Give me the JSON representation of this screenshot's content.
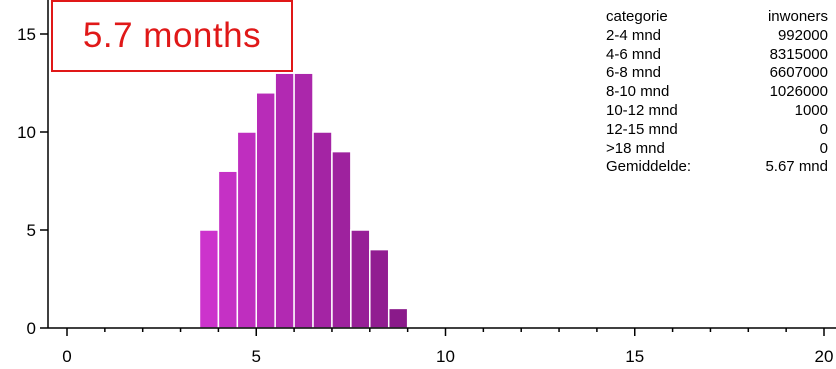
{
  "annotation": {
    "label": "5.7 months"
  },
  "table": {
    "header": {
      "col1": "categorie",
      "col2": "inwoners"
    },
    "rows": [
      {
        "category": "2-4 mnd",
        "value": "992000"
      },
      {
        "category": "4-6 mnd",
        "value": "8315000"
      },
      {
        "category": "6-8 mnd",
        "value": "6607000"
      },
      {
        "category": "8-10 mnd",
        "value": "1026000"
      },
      {
        "category": "10-12 mnd",
        "value": "1000"
      },
      {
        "category": "12-15 mnd",
        "value": "0"
      },
      {
        "category": ">18 mnd",
        "value": "0"
      },
      {
        "category": "Gemiddelde:",
        "value": "5.67 mnd"
      }
    ]
  },
  "chart_data": {
    "type": "bar",
    "title": "",
    "xlabel": "",
    "ylabel": "",
    "xlim": [
      0,
      20
    ],
    "ylim": [
      0,
      15
    ],
    "x_ticks": [
      0,
      5,
      10,
      15,
      20
    ],
    "y_ticks": [
      0,
      5,
      10,
      15
    ],
    "bin_width": 0.5,
    "bins": [
      {
        "x_start": 3.5,
        "value": 5
      },
      {
        "x_start": 4.0,
        "value": 8
      },
      {
        "x_start": 4.5,
        "value": 10
      },
      {
        "x_start": 5.0,
        "value": 12
      },
      {
        "x_start": 5.5,
        "value": 13
      },
      {
        "x_start": 6.0,
        "value": 13
      },
      {
        "x_start": 6.5,
        "value": 10
      },
      {
        "x_start": 7.0,
        "value": 9
      },
      {
        "x_start": 7.5,
        "value": 5
      },
      {
        "x_start": 8.0,
        "value": 4
      },
      {
        "x_start": 8.5,
        "value": 1
      }
    ],
    "bar_color_start": "#cc33cc",
    "bar_color_end": "#8a1a8a",
    "grid": false
  }
}
